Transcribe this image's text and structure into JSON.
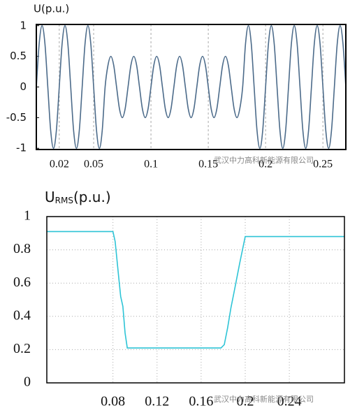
{
  "chart_data": [
    {
      "type": "line",
      "title": "U(p.u.)",
      "watermark": "武汉中力高科新能源有限公司",
      "smooth": true,
      "grid": "x",
      "xlim": [
        0,
        0.27
      ],
      "xticks": [
        0.02,
        0.05,
        0.1,
        0.15,
        0.2,
        0.25
      ],
      "ylim": [
        -1.02,
        1.02
      ],
      "yticks": [
        -1,
        -0.5,
        0,
        0.5,
        1
      ],
      "x": [
        0,
        0.0025,
        0.005,
        0.0075,
        0.01,
        0.0125,
        0.015,
        0.0175,
        0.02,
        0.0225,
        0.025,
        0.0275,
        0.03,
        0.0325,
        0.035,
        0.0375,
        0.04,
        0.0425,
        0.045,
        0.0475,
        0.05,
        0.0525,
        0.055,
        0.0575,
        0.06,
        0.0625,
        0.065,
        0.0675,
        0.07,
        0.0725,
        0.075,
        0.0775,
        0.08,
        0.0825,
        0.085,
        0.0875,
        0.09,
        0.0925,
        0.095,
        0.0975,
        0.1,
        0.1025,
        0.105,
        0.1075,
        0.11,
        0.1125,
        0.115,
        0.1175,
        0.12,
        0.1225,
        0.125,
        0.1275,
        0.13,
        0.1325,
        0.135,
        0.1375,
        0.14,
        0.1425,
        0.145,
        0.1475,
        0.15,
        0.1525,
        0.155,
        0.1575,
        0.16,
        0.1625,
        0.165,
        0.1675,
        0.17,
        0.1725,
        0.175,
        0.1775,
        0.18,
        0.1825,
        0.185,
        0.1875,
        0.19,
        0.1925,
        0.195,
        0.1975,
        0.2,
        0.2025,
        0.205,
        0.2075,
        0.21,
        0.2125,
        0.215,
        0.2175,
        0.22,
        0.2225,
        0.225,
        0.2275,
        0.23,
        0.2325,
        0.235,
        0.2375,
        0.24,
        0.2425,
        0.245,
        0.2475,
        0.25,
        0.2525,
        0.255,
        0.2575,
        0.26,
        0.2625,
        0.265,
        0.2675,
        0.27
      ],
      "series": [
        {
          "color": "#4c6b8a",
          "values": [
            0,
            0.707,
            1,
            0.707,
            0,
            -0.707,
            -1,
            -0.707,
            0,
            0.707,
            1,
            0.707,
            0,
            -0.707,
            -1,
            -0.707,
            0,
            0.707,
            1,
            0.707,
            0,
            -0.707,
            -1,
            -0.707,
            0,
            0.354,
            0.5,
            0.354,
            0,
            -0.354,
            -0.5,
            -0.354,
            0,
            0.354,
            0.5,
            0.354,
            0,
            -0.354,
            -0.5,
            -0.354,
            0,
            0.354,
            0.5,
            0.354,
            0,
            -0.354,
            -0.5,
            -0.354,
            0,
            0.354,
            0.5,
            0.354,
            0,
            -0.354,
            -0.5,
            -0.354,
            0,
            0.354,
            0.5,
            0.354,
            0,
            -0.354,
            -0.5,
            -0.354,
            0,
            0.354,
            0.5,
            0.354,
            0,
            -0.354,
            -0.5,
            -0.354,
            0,
            0.707,
            1,
            0.707,
            0,
            -0.707,
            -1,
            -0.707,
            0,
            0.707,
            1,
            0.707,
            0,
            -0.707,
            -1,
            -0.707,
            0,
            0.707,
            1,
            0.707,
            0,
            -0.707,
            -1,
            -0.707,
            0,
            0.707,
            1,
            0.707,
            0,
            -0.707,
            -1,
            -0.707,
            0,
            0.707,
            1,
            0.707,
            0
          ]
        }
      ]
    },
    {
      "type": "line",
      "title": [
        "U",
        "RMS",
        "(p.u.)"
      ],
      "watermark": "武汉中力高科新能源有限公司",
      "smooth": false,
      "grid": "both",
      "xlim": [
        0.02,
        0.29
      ],
      "xticks": [
        0.08,
        0.12,
        0.16,
        0.2,
        0.24
      ],
      "ylim": [
        0,
        1
      ],
      "yticks": [
        0,
        0.2,
        0.4,
        0.6,
        0.8,
        1
      ],
      "x": [
        0.02,
        0.08,
        0.082,
        0.085,
        0.087,
        0.089,
        0.091,
        0.093,
        0.1,
        0.178,
        0.181,
        0.184,
        0.187,
        0.19,
        0.195,
        0.2,
        0.29
      ],
      "series": [
        {
          "color": "#2ec4d6",
          "values": [
            0.91,
            0.91,
            0.85,
            0.65,
            0.52,
            0.46,
            0.3,
            0.21,
            0.21,
            0.21,
            0.23,
            0.33,
            0.45,
            0.55,
            0.72,
            0.88,
            0.88
          ]
        }
      ]
    }
  ]
}
